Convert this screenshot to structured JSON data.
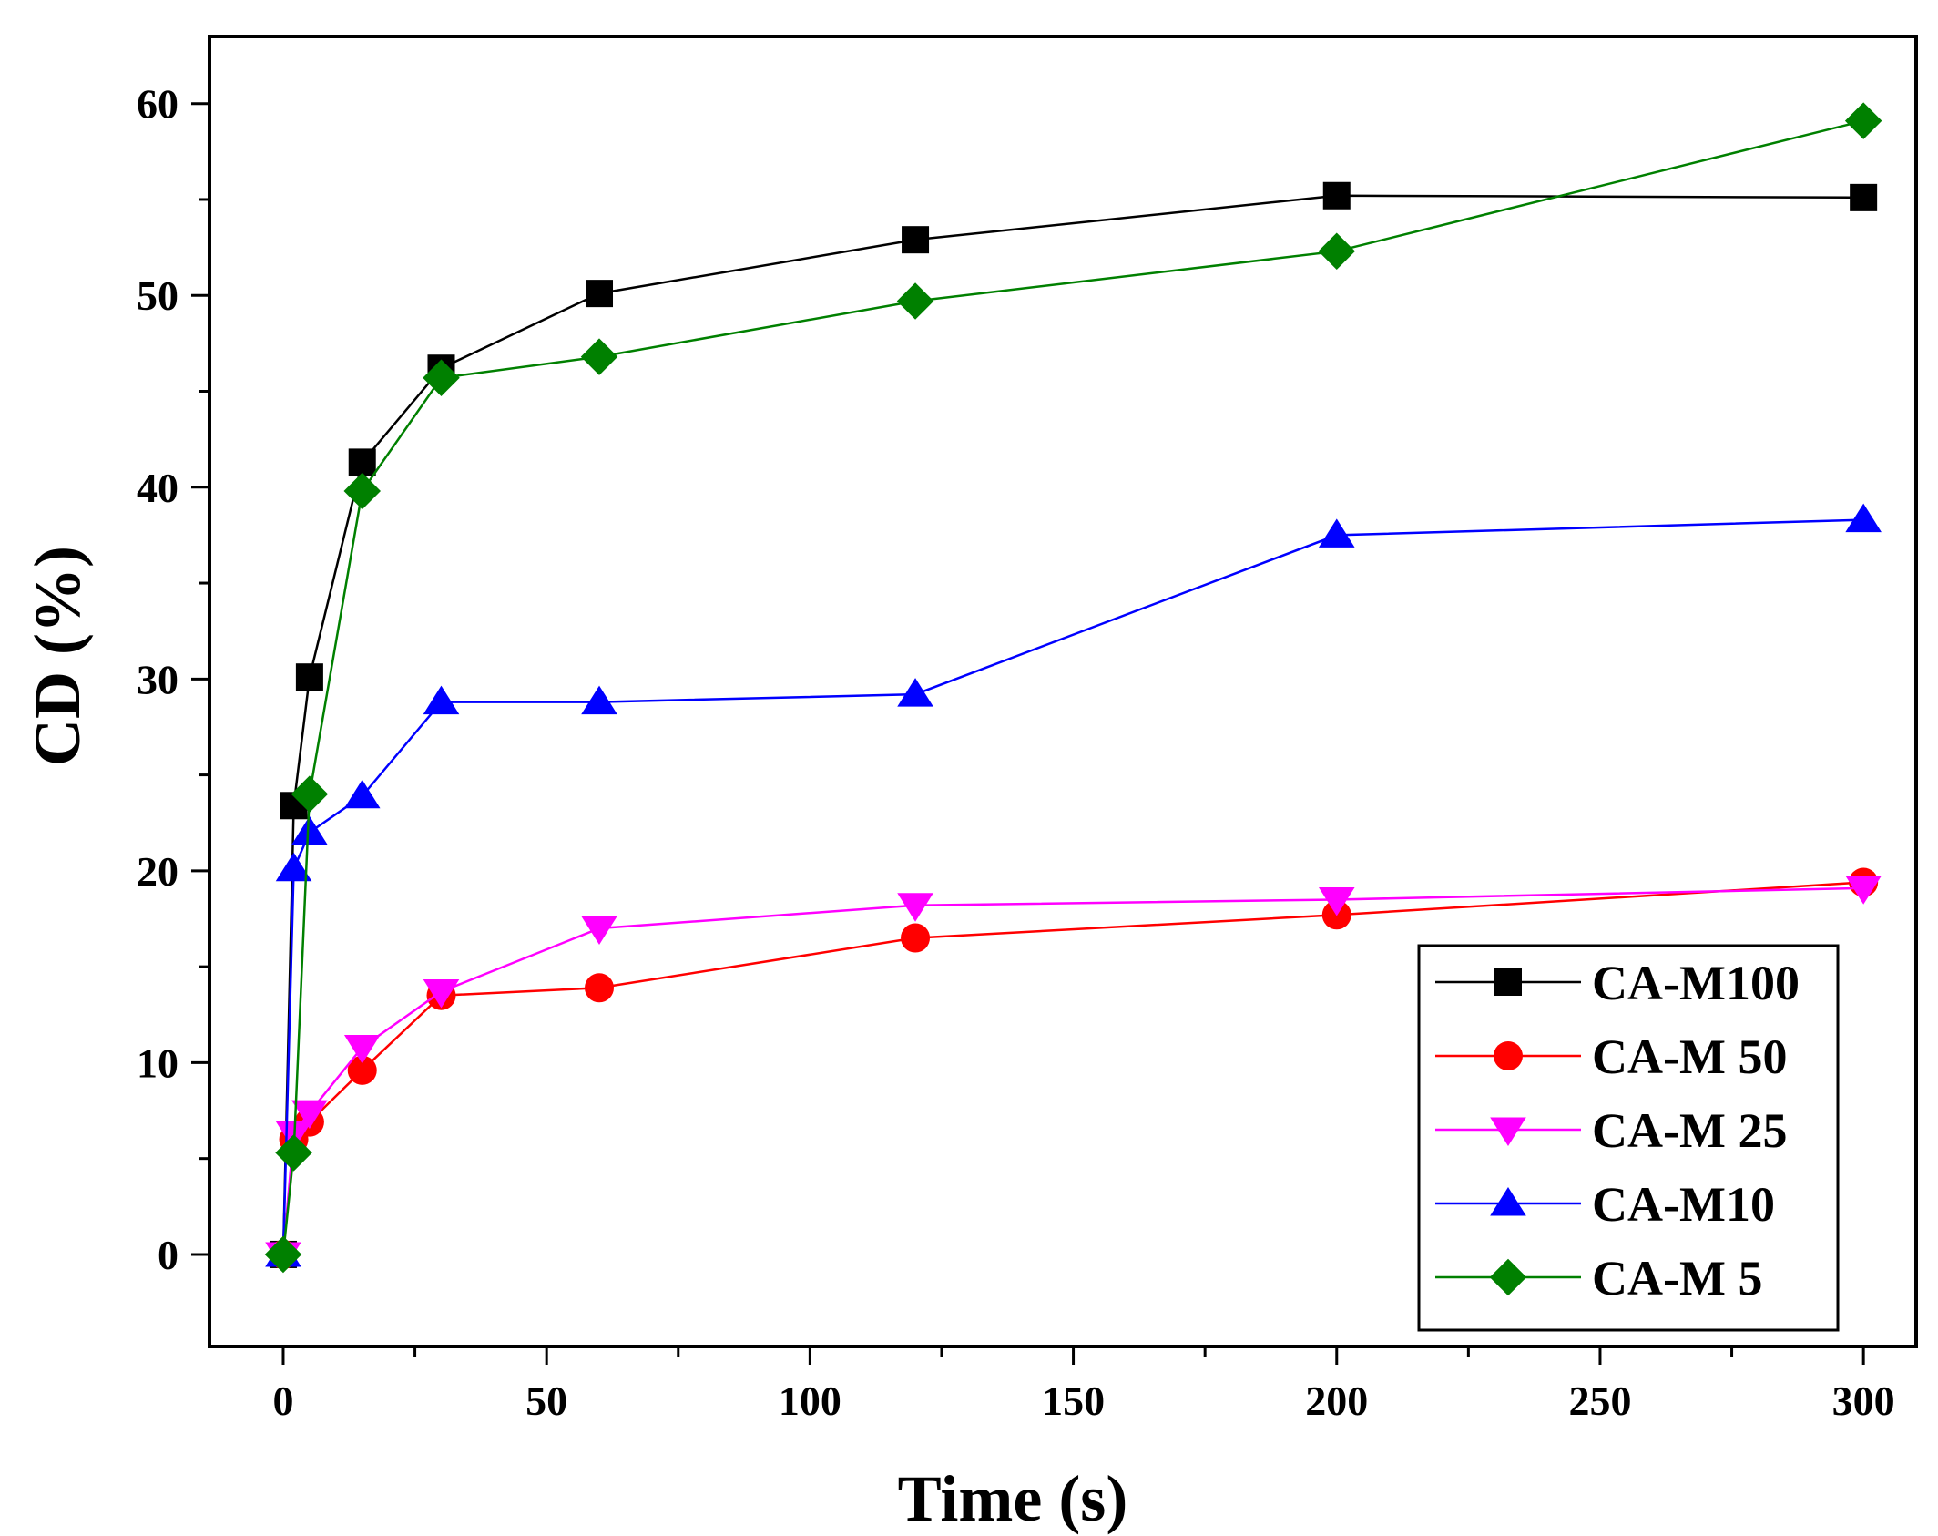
{
  "chart_data": {
    "type": "line",
    "title": "",
    "xlabel": "Time (s)",
    "ylabel": "CD (%)",
    "xlim": [
      -14,
      310
    ],
    "ylim": [
      -4.8,
      63.5
    ],
    "xticks": [
      0,
      50,
      100,
      150,
      200,
      250,
      300
    ],
    "yticks": [
      0,
      10,
      20,
      30,
      40,
      50,
      60
    ],
    "grid": false,
    "legend_position": "bottom-right",
    "series": [
      {
        "name": "CA-M100",
        "color": "#000000",
        "marker": "square",
        "x": [
          0,
          2,
          5,
          15,
          30,
          60,
          120,
          200,
          300
        ],
        "y": [
          0,
          23.4,
          30.1,
          41.3,
          46.2,
          50.1,
          52.9,
          55.2,
          55.1
        ]
      },
      {
        "name": "CA-M 50",
        "color": "#ff0000",
        "marker": "circle",
        "x": [
          0,
          2,
          5,
          15,
          30,
          60,
          120,
          200,
          300
        ],
        "y": [
          0,
          6.0,
          6.9,
          9.6,
          13.5,
          13.9,
          16.5,
          17.7,
          19.4
        ]
      },
      {
        "name": "CA-M 25",
        "color": "#ff00ff",
        "marker": "triangle-down",
        "x": [
          0,
          2,
          5,
          15,
          30,
          60,
          120,
          200,
          300
        ],
        "y": [
          0,
          6.3,
          7.4,
          10.8,
          13.7,
          17.0,
          18.2,
          18.5,
          19.1
        ]
      },
      {
        "name": "CA-M10",
        "color": "#0000ff",
        "marker": "triangle-up",
        "x": [
          0,
          2,
          5,
          15,
          30,
          60,
          120,
          200,
          300
        ],
        "y": [
          0,
          20.1,
          22.0,
          23.9,
          28.8,
          28.8,
          29.2,
          37.5,
          38.3
        ]
      },
      {
        "name": "CA-M 5",
        "color": "#008000",
        "marker": "diamond",
        "x": [
          0,
          2,
          5,
          15,
          30,
          60,
          120,
          200,
          300
        ],
        "y": [
          0,
          5.3,
          24.0,
          39.8,
          45.7,
          46.8,
          49.7,
          52.3,
          59.1
        ]
      }
    ]
  }
}
